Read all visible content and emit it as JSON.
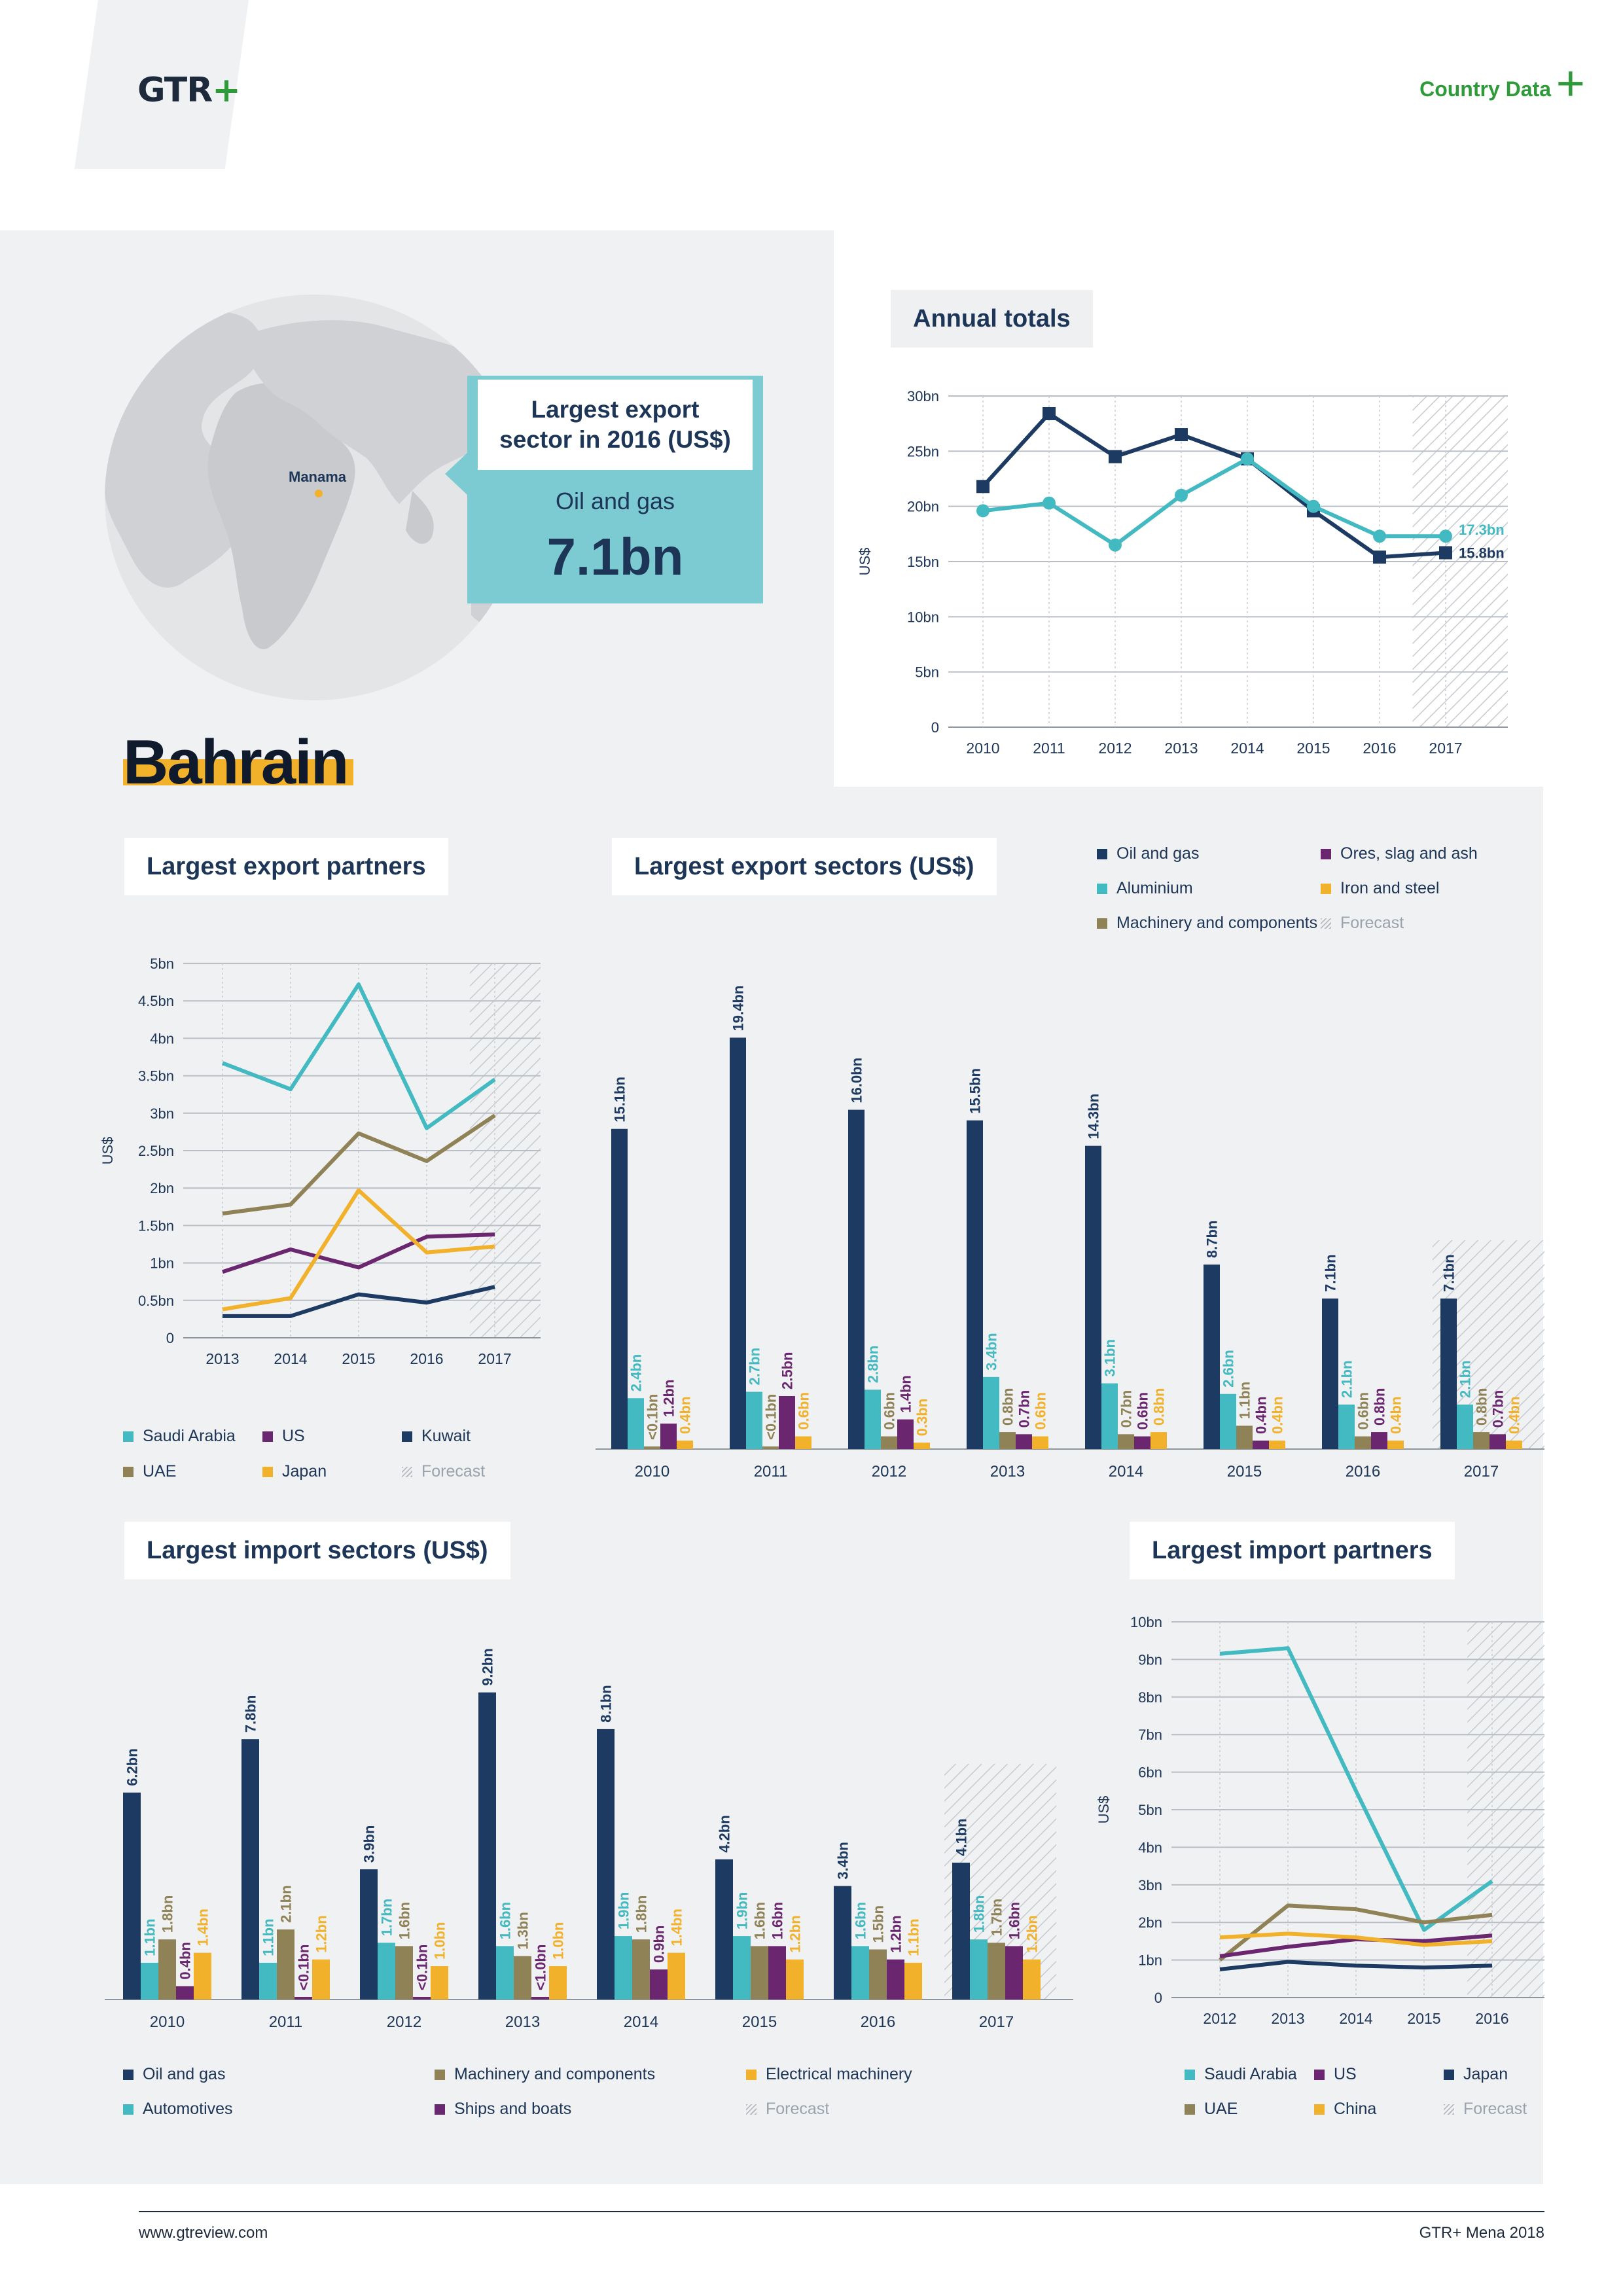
{
  "header": {
    "logo_text": "GTR",
    "logo_plus": "+",
    "section_label": "Country Data",
    "section_plus": "+"
  },
  "map": {
    "city_label": "Manama"
  },
  "callout": {
    "title": "Largest export sector in 2016 (US$)",
    "sector": "Oil and gas",
    "value": "7.1bn"
  },
  "country_name": "Bahrain",
  "colors": {
    "navy": "#1d3a63",
    "teal": "#43b9c1",
    "olive": "#8f8257",
    "purple": "#6b2670",
    "orange": "#f2b12a",
    "grid": "#c9ccd0",
    "text": "#1d3557"
  },
  "annual": {
    "title": "Annual totals",
    "ylabel": "US$",
    "y_ticks": [
      "0",
      "5bn",
      "10bn",
      "15bn",
      "20bn",
      "25bn",
      "30bn"
    ],
    "end_labels": [
      "17.3bn",
      "15.8bn"
    ]
  },
  "export_partners": {
    "title": "Largest export partners",
    "ylabel": "US$",
    "y_ticks": [
      "0",
      "0.5bn",
      "1bn",
      "1.5bn",
      "2bn",
      "2.5bn",
      "3bn",
      "3.5bn",
      "4bn",
      "4.5bn",
      "5bn"
    ],
    "legend": [
      {
        "label": "Saudi Arabia",
        "color": "#43b9c1"
      },
      {
        "label": "US",
        "color": "#6b2670"
      },
      {
        "label": "Kuwait",
        "color": "#1d3a63"
      },
      {
        "label": "UAE",
        "color": "#8f8257"
      },
      {
        "label": "Japan",
        "color": "#f2b12a"
      },
      {
        "label": "Forecast",
        "color": "hatch"
      }
    ]
  },
  "export_sectors": {
    "title": "Largest export sectors (US$)",
    "legend": [
      {
        "label": "Oil and gas",
        "color": "#1d3a63"
      },
      {
        "label": "Ores, slag and ash",
        "color": "#6b2670"
      },
      {
        "label": "Aluminium",
        "color": "#43b9c1"
      },
      {
        "label": "Iron and steel",
        "color": "#f2b12a"
      },
      {
        "label": "Machinery and components",
        "color": "#8f8257"
      },
      {
        "label": "Forecast",
        "color": "hatch"
      }
    ]
  },
  "import_sectors": {
    "title": "Largest import sectors (US$)",
    "legend": [
      {
        "label": "Oil and gas",
        "color": "#1d3a63"
      },
      {
        "label": "Machinery and components",
        "color": "#8f8257"
      },
      {
        "label": "Electrical machinery",
        "color": "#f2b12a"
      },
      {
        "label": "Automotives",
        "color": "#43b9c1"
      },
      {
        "label": "Ships and boats",
        "color": "#6b2670"
      },
      {
        "label": "Forecast",
        "color": "hatch"
      }
    ]
  },
  "import_partners": {
    "title": "Largest import partners",
    "ylabel": "US$",
    "y_ticks": [
      "0",
      "1bn",
      "2bn",
      "3bn",
      "4bn",
      "5bn",
      "6bn",
      "7bn",
      "8bn",
      "9bn",
      "10bn"
    ],
    "legend": [
      {
        "label": "Saudi Arabia",
        "color": "#43b9c1"
      },
      {
        "label": "US",
        "color": "#6b2670"
      },
      {
        "label": "Japan",
        "color": "#1d3a63"
      },
      {
        "label": "UAE",
        "color": "#8f8257"
      },
      {
        "label": "China",
        "color": "#f2b12a"
      },
      {
        "label": "Forecast",
        "color": "hatch"
      }
    ]
  },
  "footer": {
    "left": "www.gtreview.com",
    "right": "GTR+ Mena 2018"
  },
  "chart_data": [
    {
      "id": "annual",
      "type": "line",
      "title": "Annual totals",
      "ylabel": "US$",
      "ylim": [
        0,
        30
      ],
      "x": [
        "2010",
        "2011",
        "2012",
        "2013",
        "2014",
        "2015",
        "2016",
        "2017"
      ],
      "forecast_from": "2017",
      "series": [
        {
          "color": "#1d3a63",
          "marker": "square",
          "values": [
            21.8,
            28.4,
            24.5,
            26.5,
            24.3,
            19.6,
            15.4,
            15.8
          ],
          "end_label": "15.8bn"
        },
        {
          "color": "#43b9c1",
          "marker": "circle",
          "values": [
            19.6,
            20.3,
            16.5,
            21.0,
            24.3,
            20.0,
            17.3,
            17.3
          ],
          "end_label": "17.3bn"
        }
      ]
    },
    {
      "id": "export_partners",
      "type": "line",
      "title": "Largest export partners",
      "ylabel": "US$",
      "ylim": [
        0,
        5
      ],
      "x": [
        "2013",
        "2014",
        "2015",
        "2016",
        "2017"
      ],
      "forecast_from": "2017",
      "series": [
        {
          "name": "Saudi Arabia",
          "color": "#43b9c1",
          "values": [
            3.67,
            3.32,
            4.72,
            2.8,
            3.45
          ]
        },
        {
          "name": "UAE",
          "color": "#8f8257",
          "values": [
            1.66,
            1.78,
            2.73,
            2.36,
            2.97
          ]
        },
        {
          "name": "US",
          "color": "#6b2670",
          "values": [
            0.88,
            1.18,
            0.94,
            1.35,
            1.38
          ]
        },
        {
          "name": "Japan",
          "color": "#f2b12a",
          "values": [
            0.38,
            0.53,
            1.97,
            1.14,
            1.22
          ]
        },
        {
          "name": "Kuwait",
          "color": "#1d3a63",
          "values": [
            0.29,
            0.29,
            0.58,
            0.47,
            0.68
          ]
        }
      ]
    },
    {
      "id": "export_sectors",
      "type": "bar",
      "title": "Largest export sectors (US$)",
      "categories": [
        "2010",
        "2011",
        "2012",
        "2013",
        "2014",
        "2015",
        "2016",
        "2017"
      ],
      "forecast_from": "2017",
      "series": [
        {
          "name": "Oil and gas",
          "color": "#1d3a63",
          "values": [
            15.1,
            19.4,
            16.0,
            15.5,
            14.3,
            8.7,
            7.1,
            7.1
          ],
          "labels": [
            "15.1bn",
            "19.4bn",
            "16.0bn",
            "15.5bn",
            "14.3bn",
            "8.7bn",
            "7.1bn",
            "7.1bn"
          ]
        },
        {
          "name": "Aluminium",
          "color": "#43b9c1",
          "values": [
            2.4,
            2.7,
            2.8,
            3.4,
            3.1,
            2.6,
            2.1,
            2.1
          ],
          "labels": [
            "2.4bn",
            "2.7bn",
            "2.8bn",
            "3.4bn",
            "3.1bn",
            "2.6bn",
            "2.1bn",
            "2.1bn"
          ]
        },
        {
          "name": "Machinery and components",
          "color": "#8f8257",
          "values": [
            0.05,
            0.05,
            0.6,
            0.8,
            0.7,
            1.1,
            0.6,
            0.8
          ],
          "labels": [
            "<0.1bn",
            "<0.1bn",
            "0.6bn",
            "0.8bn",
            "0.7bn",
            "1.1bn",
            "0.6bn",
            "0.8bn"
          ]
        },
        {
          "name": "Ores, slag and ash",
          "color": "#6b2670",
          "values": [
            1.2,
            2.5,
            1.4,
            0.7,
            0.6,
            0.4,
            0.8,
            0.7
          ],
          "labels": [
            "1.2bn",
            "2.5bn",
            "1.4bn",
            "0.7bn",
            "0.6bn",
            "0.4bn",
            "0.8bn",
            "0.7bn"
          ]
        },
        {
          "name": "Iron and steel",
          "color": "#f2b12a",
          "values": [
            0.4,
            0.6,
            0.3,
            0.6,
            0.8,
            0.4,
            0.4,
            0.4
          ],
          "labels": [
            "0.4bn",
            "0.6bn",
            "0.3bn",
            "0.6bn",
            "0.8bn",
            "0.4bn",
            "0.4bn",
            "0.4bn"
          ]
        }
      ]
    },
    {
      "id": "import_sectors",
      "type": "bar",
      "title": "Largest import sectors (US$)",
      "categories": [
        "2010",
        "2011",
        "2012",
        "2013",
        "2014",
        "2015",
        "2016",
        "2017"
      ],
      "forecast_from": "2017",
      "series": [
        {
          "name": "Oil and gas",
          "color": "#1d3a63",
          "values": [
            6.2,
            7.8,
            3.9,
            9.2,
            8.1,
            4.2,
            3.4,
            4.1
          ],
          "labels": [
            "6.2bn",
            "7.8bn",
            "3.9bn",
            "9.2bn",
            "8.1bn",
            "4.2bn",
            "3.4bn",
            "4.1bn"
          ]
        },
        {
          "name": "Automotives",
          "color": "#43b9c1",
          "values": [
            1.1,
            1.1,
            1.7,
            1.6,
            1.9,
            1.9,
            1.6,
            1.8
          ],
          "labels": [
            "1.1bn",
            "1.1bn",
            "1.7bn",
            "1.6bn",
            "1.9bn",
            "1.9bn",
            "1.6bn",
            "1.8bn"
          ]
        },
        {
          "name": "Machinery and components",
          "color": "#8f8257",
          "values": [
            1.8,
            2.1,
            1.6,
            1.3,
            1.8,
            1.6,
            1.5,
            1.7
          ],
          "labels": [
            "1.8bn",
            "2.1bn",
            "1.6bn",
            "1.3bn",
            "1.8bn",
            "1.6bn",
            "1.5bn",
            "1.7bn"
          ]
        },
        {
          "name": "Ships and boats",
          "color": "#6b2670",
          "values": [
            0.4,
            0.05,
            0.05,
            0.05,
            0.9,
            1.6,
            1.2,
            1.6
          ],
          "labels": [
            "0.4bn",
            "<0.1bn",
            "<0.1bn",
            "<1.0bn",
            "0.9bn",
            "1.6bn",
            "1.2bn",
            "1.6bn"
          ]
        },
        {
          "name": "Electrical machinery",
          "color": "#f2b12a",
          "values": [
            1.4,
            1.2,
            1.0,
            1.0,
            1.4,
            1.2,
            1.1,
            1.2
          ],
          "labels": [
            "1.4bn",
            "1.2bn",
            "1.0bn",
            "1.0bn",
            "1.4bn",
            "1.2bn",
            "1.1bn",
            "1.2bn"
          ]
        }
      ]
    },
    {
      "id": "import_partners",
      "type": "line",
      "title": "Largest import partners",
      "ylabel": "US$",
      "ylim": [
        0,
        10
      ],
      "x": [
        "2012",
        "2013",
        "2014",
        "2015",
        "2016"
      ],
      "forecast_from": "2016",
      "series": [
        {
          "name": "Saudi Arabia",
          "color": "#43b9c1",
          "values": [
            9.15,
            9.3,
            5.5,
            1.8,
            3.1
          ]
        },
        {
          "name": "UAE",
          "color": "#8f8257",
          "values": [
            1.0,
            2.45,
            2.35,
            2.0,
            2.2
          ]
        },
        {
          "name": "US",
          "color": "#6b2670",
          "values": [
            1.1,
            1.35,
            1.55,
            1.5,
            1.65
          ]
        },
        {
          "name": "China",
          "color": "#f2b12a",
          "values": [
            1.6,
            1.7,
            1.6,
            1.4,
            1.5
          ]
        },
        {
          "name": "Japan",
          "color": "#1d3a63",
          "values": [
            0.75,
            0.95,
            0.85,
            0.8,
            0.85
          ]
        }
      ]
    }
  ]
}
